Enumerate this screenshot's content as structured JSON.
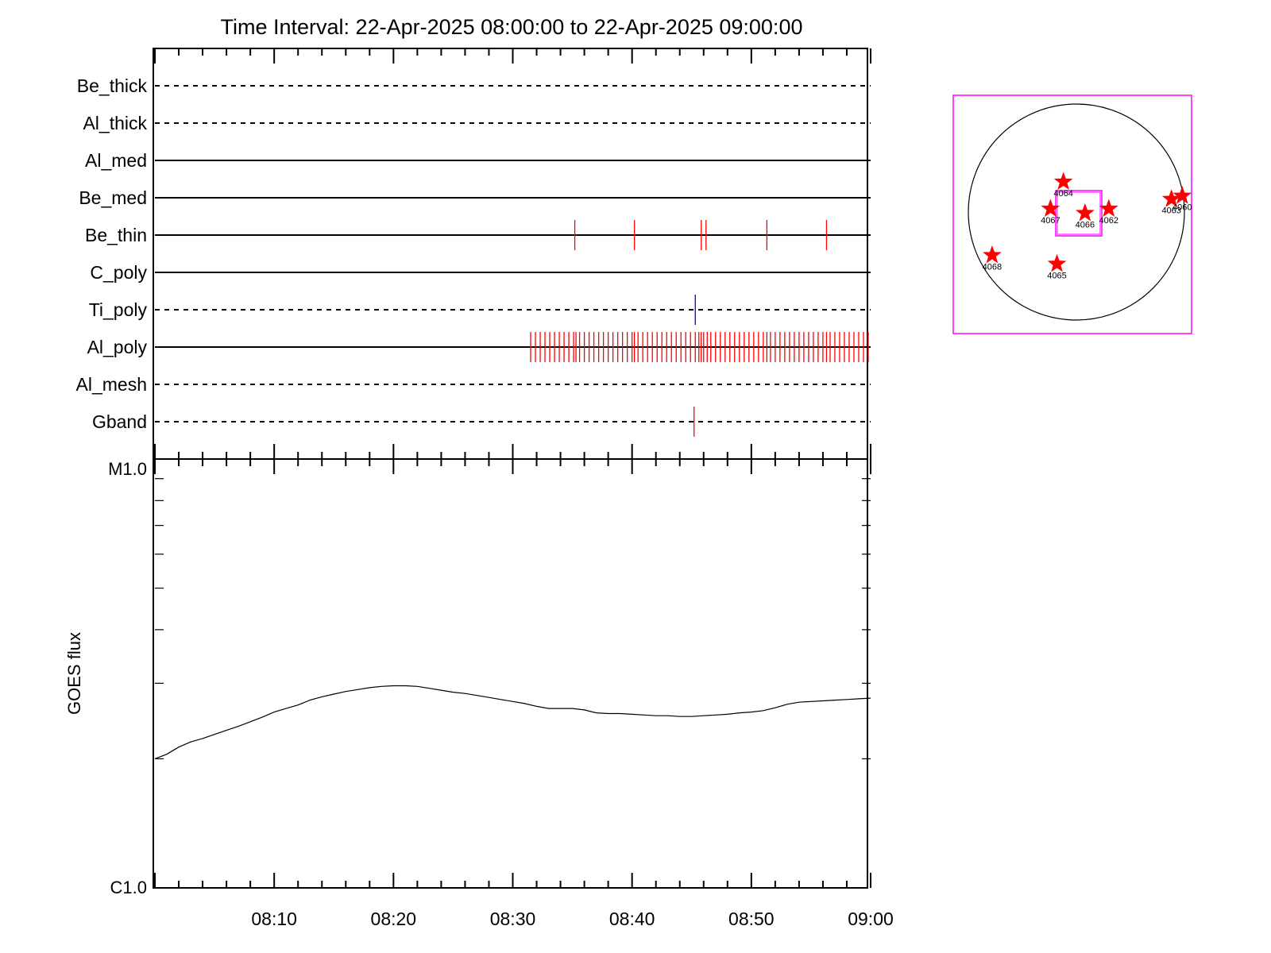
{
  "chart_data": {
    "title": "Time Interval: 22-Apr-2025 08:00:00 to 22-Apr-2025 09:00:00",
    "type": "event-timeline",
    "x_range_minutes": [
      0,
      60
    ],
    "x_ticks": [
      {
        "minute": 10,
        "label": "08:10"
      },
      {
        "minute": 20,
        "label": "08:20"
      },
      {
        "minute": 30,
        "label": "08:30"
      },
      {
        "minute": 40,
        "label": "08:40"
      },
      {
        "minute": 50,
        "label": "08:50"
      },
      {
        "minute": 60,
        "label": "09:00"
      }
    ],
    "filter_rows": [
      {
        "label": "Be_thick",
        "style": "dashed",
        "events": [],
        "event_color": "#ff0000"
      },
      {
        "label": "Al_thick",
        "style": "dashed",
        "events": [],
        "event_color": "#ff0000"
      },
      {
        "label": "Al_med",
        "style": "solid",
        "events": [],
        "event_color": "#ff0000"
      },
      {
        "label": "Be_med",
        "style": "solid",
        "events": [],
        "event_color": "#ff0000"
      },
      {
        "label": "Be_thin",
        "style": "solid",
        "events": [
          35.2,
          40.2,
          45.8,
          46.2,
          51.3,
          56.3
        ],
        "event_color": "#ff0000"
      },
      {
        "label": "C_poly",
        "style": "solid",
        "events": [],
        "event_color": "#ff0000"
      },
      {
        "label": "Ti_poly",
        "style": "dashed",
        "events": [
          45.3
        ],
        "event_color": "#0000cc"
      },
      {
        "label": "Al_poly",
        "style": "solid",
        "events": [
          31.5,
          31.9,
          32.3,
          32.7,
          33.1,
          33.5,
          33.9,
          34.3,
          34.7,
          35.1,
          35.3,
          35.6,
          36.0,
          36.4,
          36.8,
          37.2,
          37.6,
          38.0,
          38.4,
          38.8,
          39.2,
          39.6,
          40.0,
          40.2,
          40.5,
          40.9,
          41.3,
          41.7,
          42.1,
          42.5,
          42.9,
          43.3,
          43.7,
          44.1,
          44.5,
          44.9,
          45.3,
          45.6,
          45.8,
          46.0,
          46.3,
          46.6,
          47.0,
          47.4,
          47.8,
          48.2,
          48.6,
          49.0,
          49.4,
          49.8,
          50.2,
          50.6,
          51.0,
          51.3,
          51.6,
          52.0,
          52.4,
          52.8,
          53.2,
          53.6,
          54.0,
          54.4,
          54.8,
          55.2,
          55.6,
          56.0,
          56.3,
          56.6,
          57.0,
          57.4,
          57.8,
          58.2,
          58.6,
          59.0,
          59.4,
          59.8
        ],
        "event_color": "#ff0000"
      },
      {
        "label": "Al_mesh",
        "style": "dashed",
        "events": [],
        "event_color": "#ff0000"
      },
      {
        "label": "Gband",
        "style": "dashed",
        "events": [
          45.2
        ],
        "event_color": "#ff0000"
      }
    ],
    "goes": {
      "ylabel": "GOES flux",
      "y_scale": "log",
      "ylim_labels": [
        "C1.0",
        "M1.0"
      ],
      "ylim": [
        1e-06,
        1e-05
      ],
      "series": [
        {
          "color": "#000000",
          "x": [
            0,
            1,
            2,
            3,
            4,
            5,
            6,
            7,
            8,
            9,
            10,
            11,
            12,
            13,
            14,
            15,
            16,
            17,
            18,
            19,
            20,
            21,
            22,
            23,
            24,
            25,
            26,
            27,
            28,
            29,
            30,
            31,
            32,
            33,
            34,
            35,
            36,
            37,
            38,
            39,
            40,
            41,
            42,
            43,
            44,
            45,
            46,
            47,
            48,
            49,
            50,
            51,
            52,
            53,
            54,
            55,
            56,
            57,
            58,
            59,
            60
          ],
          "values": [
            2e-06,
            2.05e-06,
            2.13e-06,
            2.19e-06,
            2.23e-06,
            2.28e-06,
            2.33e-06,
            2.38e-06,
            2.44e-06,
            2.5e-06,
            2.57e-06,
            2.62e-06,
            2.67e-06,
            2.74e-06,
            2.79e-06,
            2.83e-06,
            2.87e-06,
            2.9e-06,
            2.93e-06,
            2.95e-06,
            2.96e-06,
            2.96e-06,
            2.95e-06,
            2.92e-06,
            2.89e-06,
            2.86e-06,
            2.84e-06,
            2.81e-06,
            2.78e-06,
            2.75e-06,
            2.72e-06,
            2.69e-06,
            2.65e-06,
            2.62e-06,
            2.62e-06,
            2.62e-06,
            2.6e-06,
            2.56e-06,
            2.55e-06,
            2.55e-06,
            2.54e-06,
            2.53e-06,
            2.52e-06,
            2.52e-06,
            2.51e-06,
            2.51e-06,
            2.52e-06,
            2.53e-06,
            2.54e-06,
            2.56e-06,
            2.57e-06,
            2.59e-06,
            2.63e-06,
            2.68e-06,
            2.71e-06,
            2.72e-06,
            2.73e-06,
            2.74e-06,
            2.75e-06,
            2.76e-06,
            2.77e-06
          ]
        }
      ]
    },
    "sun_map": {
      "box_color": "#ff00ff",
      "limb_color": "#000000",
      "marker_color": "#ff0000",
      "regions": [
        {
          "label": "4064",
          "pos": [
            -0.12,
            0.28
          ]
        },
        {
          "label": "4067",
          "pos": [
            -0.24,
            0.03
          ]
        },
        {
          "label": "4066",
          "pos": [
            0.08,
            -0.01
          ]
        },
        {
          "label": "4062",
          "pos": [
            0.3,
            0.03
          ]
        },
        {
          "label": "4063",
          "pos": [
            0.88,
            0.12
          ]
        },
        {
          "label": "4060",
          "pos": [
            0.98,
            0.15
          ]
        },
        {
          "label": "4068",
          "pos": [
            -0.78,
            -0.4
          ]
        },
        {
          "label": "4065",
          "pos": [
            -0.18,
            -0.48
          ]
        }
      ]
    }
  }
}
